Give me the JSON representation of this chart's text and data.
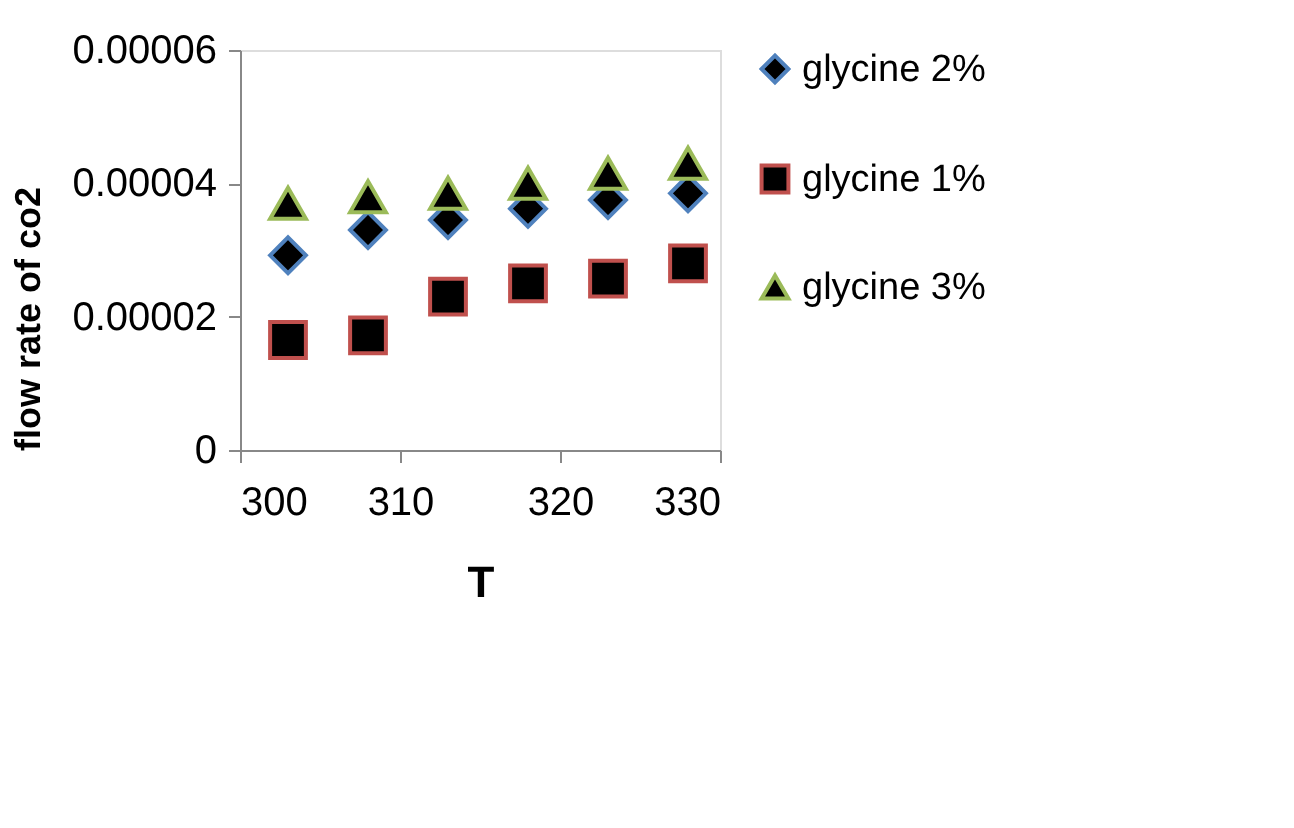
{
  "chart_data": {
    "type": "scatter",
    "xlabel": "T",
    "ylabel": "flow rate of co2",
    "x": [
      303,
      308,
      313,
      318,
      323,
      328
    ],
    "series": [
      {
        "name": "glycine 2%",
        "color": "#4f81bd",
        "marker": "diamond",
        "values": [
          2.92e-05,
          3.3e-05,
          3.45e-05,
          3.62e-05,
          3.75e-05,
          3.85e-05
        ]
      },
      {
        "name": "glycine 1%",
        "color": "#c0504d",
        "marker": "square",
        "values": [
          1.65e-05,
          1.72e-05,
          2.3e-05,
          2.5e-05,
          2.57e-05,
          2.8e-05
        ]
      },
      {
        "name": "glycine 3%",
        "color": "#9bbb59",
        "marker": "triangle",
        "values": [
          3.7e-05,
          3.8e-05,
          3.85e-05,
          4e-05,
          4.15e-05,
          4.3e-05
        ]
      }
    ],
    "xlim": [
      300,
      330
    ],
    "xticks": [
      300,
      310,
      320,
      330
    ],
    "ylim": [
      0,
      6e-05
    ],
    "yticks": [
      0,
      {
        "value": 2e-05,
        "label": "0.00002"
      },
      {
        "value": 4e-05,
        "label": "0.00004"
      },
      {
        "value": 6e-05,
        "label": "0.00006"
      }
    ],
    "grid": false,
    "legend": "right"
  }
}
